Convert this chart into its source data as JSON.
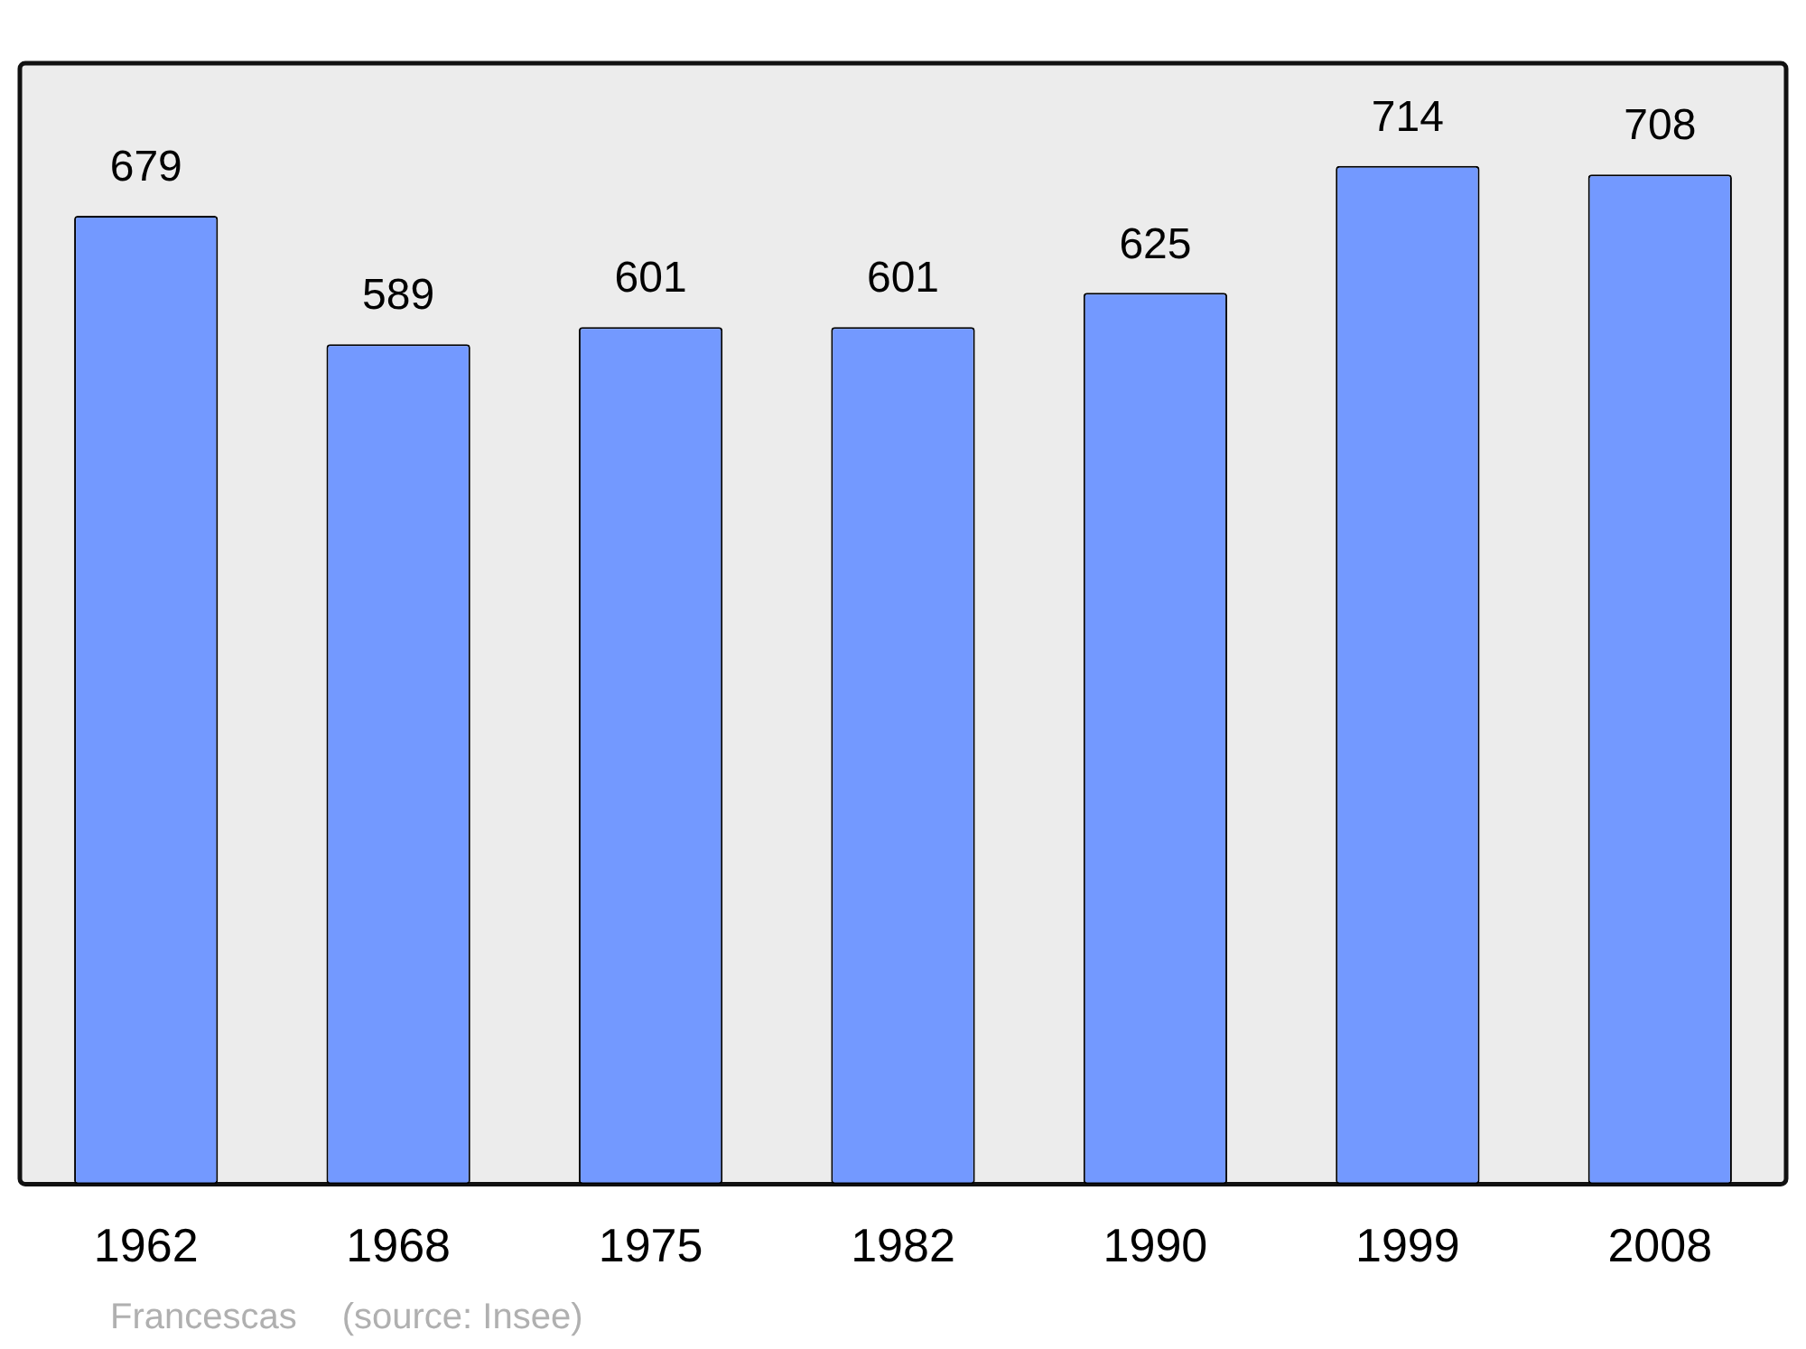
{
  "chart_data": {
    "type": "bar",
    "categories": [
      "1962",
      "1968",
      "1975",
      "1982",
      "1990",
      "1999",
      "2008"
    ],
    "values": [
      679,
      589,
      601,
      601,
      625,
      714,
      708
    ],
    "color": "#7399ff",
    "ylim": [
      0,
      786
    ],
    "data_labels": true,
    "tick_labels": "x",
    "grid": false,
    "legend": false,
    "annotations": [
      "Francescas",
      "(source: Insee)"
    ]
  }
}
